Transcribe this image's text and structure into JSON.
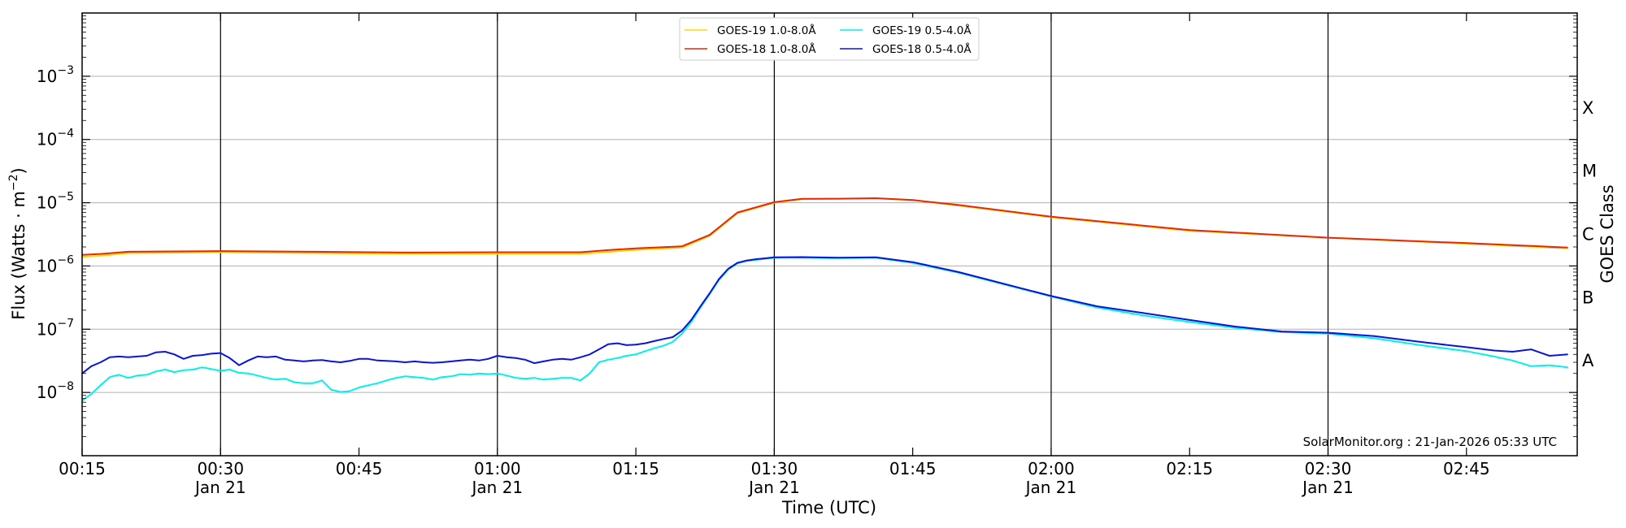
{
  "chart_data": {
    "type": "line",
    "ylabel_base": "Flux (Watts · m",
    "ylabel_exp": "−2",
    "ylabel_close": ")",
    "xlabel": "Time (UTC)",
    "right_label": "GOES Class",
    "y_scale": "log",
    "ylim": [
      1e-09,
      0.01
    ],
    "xlim": [
      "00:15",
      "02:57"
    ],
    "grid": "horizontal",
    "legend_position": "top-center",
    "credit": "SolarMonitor.org : 21-Jan-2026 05:33 UTC",
    "y_ticks": [
      {
        "value": 1e-08,
        "base": "10",
        "exp": "−8"
      },
      {
        "value": 1e-07,
        "base": "10",
        "exp": "−7"
      },
      {
        "value": 1e-06,
        "base": "10",
        "exp": "−6"
      },
      {
        "value": 1e-05,
        "base": "10",
        "exp": "−5"
      },
      {
        "value": 0.0001,
        "base": "10",
        "exp": "−4"
      },
      {
        "value": 0.001,
        "base": "10",
        "exp": "−3"
      }
    ],
    "x_ticks": [
      {
        "time": "00:15",
        "label": "00:15",
        "sublabel": ""
      },
      {
        "time": "00:30",
        "label": "00:30",
        "sublabel": "Jan 21"
      },
      {
        "time": "00:45",
        "label": "00:45",
        "sublabel": ""
      },
      {
        "time": "01:00",
        "label": "01:00",
        "sublabel": "Jan 21"
      },
      {
        "time": "01:15",
        "label": "01:15",
        "sublabel": ""
      },
      {
        "time": "01:30",
        "label": "01:30",
        "sublabel": "Jan 21"
      },
      {
        "time": "01:45",
        "label": "01:45",
        "sublabel": ""
      },
      {
        "time": "02:00",
        "label": "02:00",
        "sublabel": "Jan 21"
      },
      {
        "time": "02:15",
        "label": "02:15",
        "sublabel": ""
      },
      {
        "time": "02:30",
        "label": "02:30",
        "sublabel": "Jan 21"
      },
      {
        "time": "02:45",
        "label": "02:45",
        "sublabel": ""
      }
    ],
    "vertical_lines": [
      "00:30",
      "01:00",
      "01:30",
      "02:00",
      "02:30"
    ],
    "goes_classes": [
      {
        "label": "X",
        "value": 0.000316
      },
      {
        "label": "M",
        "value": 3.16e-05
      },
      {
        "label": "C",
        "value": 3.16e-06
      },
      {
        "label": "B",
        "value": 3.16e-07
      },
      {
        "label": "A",
        "value": 3.16e-08
      }
    ],
    "series": [
      {
        "name": "GOES-19 1.0-8.0Å",
        "color": "#ffd700",
        "x": [
          "00:15",
          "00:17",
          "00:20",
          "00:25",
          "00:30",
          "00:40",
          "00:50",
          "01:00",
          "01:09",
          "01:15",
          "01:20",
          "01:23",
          "01:26",
          "01:30",
          "01:33",
          "01:37",
          "01:41",
          "01:45",
          "01:50",
          "02:00",
          "02:15",
          "02:30",
          "02:45",
          "02:56"
        ],
        "y": [
          1.4e-06,
          1.45e-06,
          1.6e-06,
          1.62e-06,
          1.65e-06,
          1.6e-06,
          1.55e-06,
          1.55e-06,
          1.55e-06,
          1.8e-06,
          1.95e-06,
          3e-06,
          6.8e-06,
          1e-05,
          1.14e-05,
          1.15e-05,
          1.17e-05,
          1.1e-05,
          9e-06,
          5.9e-06,
          3.6e-06,
          2.8e-06,
          2.25e-06,
          1.9e-06
        ]
      },
      {
        "name": "GOES-18 1.0-8.0Å",
        "color": "#e8280a",
        "x": [
          "00:15",
          "00:17",
          "00:20",
          "00:25",
          "00:30",
          "00:40",
          "00:50",
          "01:00",
          "01:09",
          "01:12",
          "01:15",
          "01:20",
          "01:23",
          "01:26",
          "01:30",
          "01:33",
          "01:37",
          "01:41",
          "01:45",
          "01:50",
          "02:00",
          "02:15",
          "02:30",
          "02:45",
          "02:56"
        ],
        "y": [
          1.5e-06,
          1.55e-06,
          1.68e-06,
          1.7e-06,
          1.72e-06,
          1.68e-06,
          1.63e-06,
          1.65e-06,
          1.65e-06,
          1.78e-06,
          1.9e-06,
          2.05e-06,
          3.1e-06,
          7e-06,
          1.02e-05,
          1.15e-05,
          1.16e-05,
          1.18e-05,
          1.1e-05,
          9.2e-06,
          6e-06,
          3.7e-06,
          2.8e-06,
          2.3e-06,
          1.95e-06
        ]
      },
      {
        "name": "GOES-19 0.5-4.0Å",
        "color": "#00f0f0",
        "x": [
          "00:15",
          "00:16",
          "00:17",
          "00:18",
          "00:19",
          "00:20",
          "00:21",
          "00:22",
          "00:23",
          "00:24",
          "00:25",
          "00:26",
          "00:27",
          "00:28",
          "00:29",
          "00:30",
          "00:31",
          "00:32",
          "00:33",
          "00:34",
          "00:35",
          "00:36",
          "00:37",
          "00:38",
          "00:39",
          "00:40",
          "00:41",
          "00:42",
          "00:43",
          "00:44",
          "00:45",
          "00:46",
          "00:47",
          "00:48",
          "00:49",
          "00:50",
          "00:51",
          "00:52",
          "00:53",
          "00:54",
          "00:55",
          "00:56",
          "00:57",
          "00:58",
          "00:59",
          "01:00",
          "01:01",
          "01:02",
          "01:03",
          "01:04",
          "01:05",
          "01:06",
          "01:07",
          "01:08",
          "01:09",
          "01:10",
          "01:11",
          "01:12",
          "01:13",
          "01:14",
          "01:15",
          "01:16",
          "01:17",
          "01:18",
          "01:19",
          "01:20",
          "01:21",
          "01:22",
          "01:23",
          "01:24",
          "01:25",
          "01:26",
          "01:27",
          "01:28",
          "01:29",
          "01:30",
          "01:33",
          "01:37",
          "01:41",
          "01:45",
          "01:50",
          "02:00",
          "02:05",
          "02:10",
          "02:15",
          "02:20",
          "02:25",
          "02:30",
          "02:35",
          "02:40",
          "02:45",
          "02:48",
          "02:50",
          "02:52",
          "02:54",
          "02:56"
        ],
        "y": [
          7.5e-09,
          9.5e-09,
          1.3e-08,
          1.75e-08,
          1.9e-08,
          1.7e-08,
          1.85e-08,
          1.9e-08,
          2.15e-08,
          2.3e-08,
          2.1e-08,
          2.25e-08,
          2.3e-08,
          2.5e-08,
          2.35e-08,
          2.2e-08,
          2.3e-08,
          2.05e-08,
          2e-08,
          1.85e-08,
          1.7e-08,
          1.6e-08,
          1.65e-08,
          1.45e-08,
          1.4e-08,
          1.4e-08,
          1.55e-08,
          1.1e-08,
          1.02e-08,
          1.05e-08,
          1.2e-08,
          1.3e-08,
          1.4e-08,
          1.55e-08,
          1.7e-08,
          1.8e-08,
          1.75e-08,
          1.7e-08,
          1.6e-08,
          1.75e-08,
          1.8e-08,
          1.95e-08,
          1.9e-08,
          2e-08,
          1.95e-08,
          2e-08,
          1.85e-08,
          1.7e-08,
          1.65e-08,
          1.7e-08,
          1.6e-08,
          1.65e-08,
          1.7e-08,
          1.7e-08,
          1.55e-08,
          2e-08,
          3e-08,
          3.3e-08,
          3.5e-08,
          3.8e-08,
          4e-08,
          4.5e-08,
          5e-08,
          5.5e-08,
          6.3e-08,
          8.5e-08,
          1.3e-07,
          2.2e-07,
          3.6e-07,
          6e-07,
          8.8e-07,
          1.1e-06,
          1.2e-06,
          1.25e-06,
          1.3e-06,
          1.35e-06,
          1.35e-06,
          1.33e-06,
          1.35e-06,
          1.12e-06,
          7.8e-07,
          3.3e-07,
          2.2e-07,
          1.65e-07,
          1.3e-07,
          1.05e-07,
          9e-08,
          8.5e-08,
          7.2e-08,
          5.6e-08,
          4.5e-08,
          3.7e-08,
          3.2e-08,
          2.6e-08,
          2.7e-08,
          2.5e-08
        ]
      },
      {
        "name": "GOES-18 0.5-4.0Å",
        "color": "#0a14d8",
        "x": [
          "00:15",
          "00:16",
          "00:17",
          "00:18",
          "00:19",
          "00:20",
          "00:21",
          "00:22",
          "00:23",
          "00:24",
          "00:25",
          "00:26",
          "00:27",
          "00:28",
          "00:29",
          "00:30",
          "00:31",
          "00:32",
          "00:33",
          "00:34",
          "00:35",
          "00:36",
          "00:37",
          "00:38",
          "00:39",
          "00:40",
          "00:41",
          "00:42",
          "00:43",
          "00:44",
          "00:45",
          "00:46",
          "00:47",
          "00:48",
          "00:49",
          "00:50",
          "00:51",
          "00:52",
          "00:53",
          "00:54",
          "00:55",
          "00:56",
          "00:57",
          "00:58",
          "00:59",
          "01:00",
          "01:01",
          "01:02",
          "01:03",
          "01:04",
          "01:05",
          "01:06",
          "01:07",
          "01:08",
          "01:09",
          "01:10",
          "01:11",
          "01:12",
          "01:13",
          "01:14",
          "01:15",
          "01:16",
          "01:17",
          "01:18",
          "01:19",
          "01:20",
          "01:21",
          "01:22",
          "01:23",
          "01:24",
          "01:25",
          "01:26",
          "01:27",
          "01:28",
          "01:29",
          "01:30",
          "01:33",
          "01:37",
          "01:41",
          "01:45",
          "01:50",
          "02:00",
          "02:05",
          "02:10",
          "02:15",
          "02:20",
          "02:25",
          "02:30",
          "02:35",
          "02:40",
          "02:45",
          "02:48",
          "02:50",
          "02:52",
          "02:54",
          "02:56"
        ],
        "y": [
          2e-08,
          2.6e-08,
          3e-08,
          3.6e-08,
          3.7e-08,
          3.6e-08,
          3.7e-08,
          3.8e-08,
          4.3e-08,
          4.4e-08,
          4e-08,
          3.4e-08,
          3.8e-08,
          3.9e-08,
          4.1e-08,
          4.2e-08,
          3.5e-08,
          2.7e-08,
          3.2e-08,
          3.7e-08,
          3.6e-08,
          3.7e-08,
          3.3e-08,
          3.2e-08,
          3.1e-08,
          3.2e-08,
          3.25e-08,
          3.1e-08,
          3e-08,
          3.15e-08,
          3.4e-08,
          3.4e-08,
          3.2e-08,
          3.15e-08,
          3.1e-08,
          3e-08,
          3.1e-08,
          3e-08,
          2.95e-08,
          3e-08,
          3.1e-08,
          3.2e-08,
          3.3e-08,
          3.2e-08,
          3.4e-08,
          3.8e-08,
          3.6e-08,
          3.5e-08,
          3.3e-08,
          2.9e-08,
          3.1e-08,
          3.3e-08,
          3.4e-08,
          3.3e-08,
          3.6e-08,
          4e-08,
          4.8e-08,
          5.8e-08,
          6e-08,
          5.6e-08,
          5.7e-08,
          6e-08,
          6.5e-08,
          7e-08,
          7.5e-08,
          9.5e-08,
          1.4e-07,
          2.3e-07,
          3.7e-07,
          6.2e-07,
          9e-07,
          1.12e-06,
          1.22e-06,
          1.28e-06,
          1.32e-06,
          1.37e-06,
          1.38e-06,
          1.35e-06,
          1.37e-06,
          1.15e-06,
          8e-07,
          3.35e-07,
          2.3e-07,
          1.8e-07,
          1.4e-07,
          1.1e-07,
          9.2e-08,
          8.8e-08,
          7.8e-08,
          6.3e-08,
          5.2e-08,
          4.6e-08,
          4.4e-08,
          4.8e-08,
          3.8e-08,
          4e-08
        ]
      }
    ]
  }
}
